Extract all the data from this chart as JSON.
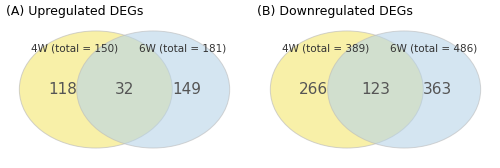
{
  "title_A": "(A) Upregulated DEGs",
  "title_B": "(B) Downregulated DEGs",
  "A_left_label": "4W (total = 150)",
  "A_right_label": "6W (total = 181)",
  "A_left_val": "118",
  "A_center_val": "32",
  "A_right_val": "149",
  "B_left_label": "4W (total = 389)",
  "B_right_label": "6W (total = 486)",
  "B_left_val": "266",
  "B_center_val": "123",
  "B_right_val": "363",
  "yellow_color": "#F5E87A",
  "blue_color": "#B8D4E8",
  "yellow_alpha": 0.65,
  "blue_alpha": 0.6,
  "background_color": "#ffffff",
  "number_fontsize": 11,
  "label_fontsize": 7.5,
  "title_fontsize": 9
}
